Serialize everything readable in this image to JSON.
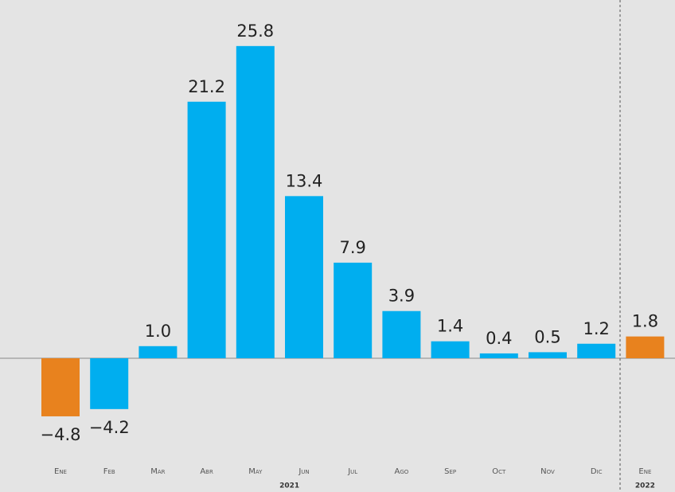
{
  "chart_data": {
    "type": "bar",
    "categories": [
      "Ene",
      "Feb",
      "Mar",
      "Abr",
      "May",
      "Jun",
      "Jul",
      "Ago",
      "Sep",
      "Oct",
      "Nov",
      "Dic",
      "Ene"
    ],
    "values": [
      -4.8,
      -4.2,
      1.0,
      21.2,
      25.8,
      13.4,
      7.9,
      3.9,
      1.4,
      0.4,
      0.5,
      1.2,
      1.8
    ],
    "value_labels": [
      "−4.8",
      "−4.2",
      "1.0",
      "21.2",
      "25.8",
      "13.4",
      "7.9",
      "3.9",
      "1.4",
      "0.4",
      "0.5",
      "1.2",
      "1.8"
    ],
    "colors": [
      "#e8821e",
      "#00aeef",
      "#00aeef",
      "#00aeef",
      "#00aeef",
      "#00aeef",
      "#00aeef",
      "#00aeef",
      "#00aeef",
      "#00aeef",
      "#00aeef",
      "#00aeef",
      "#e8821e"
    ],
    "year_labels": [
      "2021",
      "2022"
    ]
  }
}
